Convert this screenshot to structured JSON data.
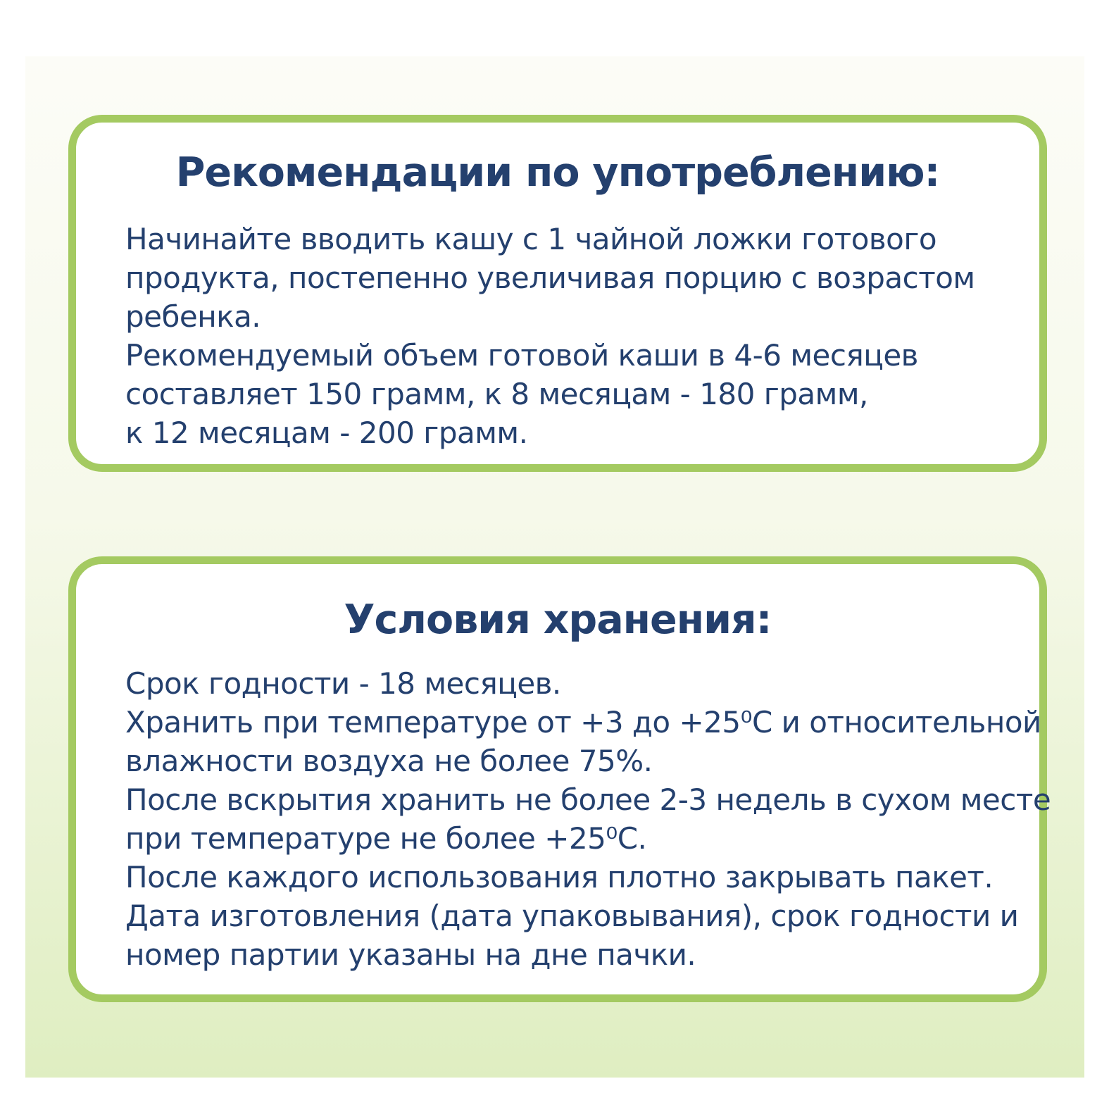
{
  "recommendations": {
    "title": "Рекомендации по употреблению:",
    "lines": [
      "Начинайте вводить кашу с 1 чайной ложки готового",
      "продукта, постепенно увеличивая порцию с возрастом",
      "ребенка.",
      "Рекомендуемый объем готовой каши в 4-6 месяцев",
      "составляет 150 грамм, к 8 месяцам - 180 грамм,",
      "к 12 месяцам - 200 грамм."
    ]
  },
  "storage": {
    "title": "Условия хранения:",
    "lines": [
      "Срок годности - 18 месяцев.",
      "Хранить при температуре от +3 до +25⁰С и относительной",
      "влажности воздуха не более 75%.",
      "После вскрытия хранить не более 2-3 недель в сухом месте",
      "при температуре не более +25⁰С.",
      "После каждого использования плотно закрывать пакет.",
      "Дата изготовления (дата упаковывания), срок годности и",
      "номер партии указаны на дне пачки."
    ]
  },
  "colors": {
    "accent_border": "#a4ca61",
    "text": "#24406e",
    "panel_top": "#fcfcf7",
    "panel_bottom": "#dfeec1"
  }
}
